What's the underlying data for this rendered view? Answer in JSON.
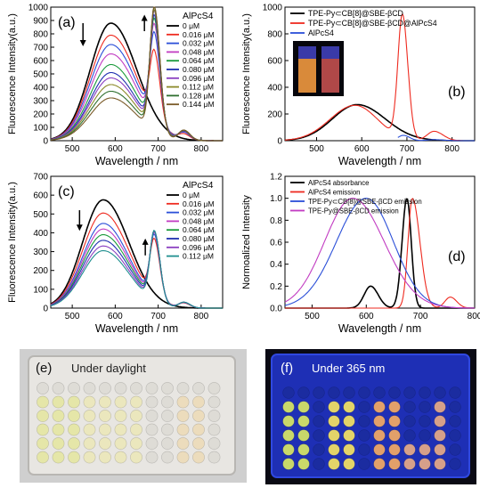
{
  "colors": {
    "black": "#000000",
    "red": "#ee2a1f",
    "blue": "#2b4fd8",
    "magenta": "#c23cc2",
    "green": "#1a9a3a",
    "dark_blue": "#1f2fb0",
    "purple": "#8a3fc0",
    "olive": "#8c8a2a",
    "dark_green": "#2f6f2f",
    "brown": "#7a5a28",
    "teal": "#1f8f8f"
  },
  "photos": {
    "e": {
      "panel_label": "(e)",
      "caption": "Under daylight",
      "icon": "well-plate-daylight-photo"
    },
    "f": {
      "panel_label": "(f)",
      "caption": "Under 365 nm",
      "icon": "well-plate-uv-photo"
    }
  },
  "chart_data": [
    {
      "panel": "(a)",
      "type": "line",
      "xlabel": "Wavelength / nm",
      "ylabel": "Fluorescence Intensity(a.u.)",
      "xlim": [
        450,
        850
      ],
      "ylim": [
        0,
        1000
      ],
      "xticks": [
        500,
        600,
        700,
        800
      ],
      "yticks": [
        0,
        100,
        200,
        300,
        400,
        500,
        600,
        700,
        800,
        900,
        1000
      ],
      "legend_title": "AlPcS4",
      "legend_position": "top-right",
      "arrows": [
        "down-at-main-peak",
        "up-at-secondary-peak"
      ],
      "series": [
        {
          "name": "0 μM",
          "color": "black",
          "peak_main": 880,
          "peak_second": 0
        },
        {
          "name": "0.016 μM",
          "color": "red",
          "peak_main": 790,
          "peak_second": 490
        },
        {
          "name": "0.032 μM",
          "color": "blue",
          "peak_main": 720,
          "peak_second": 640
        },
        {
          "name": "0.048 μM",
          "color": "magenta",
          "peak_main": 650,
          "peak_second": 720
        },
        {
          "name": "0.064 μM",
          "color": "green",
          "peak_main": 570,
          "peak_second": 780
        },
        {
          "name": "0.080 μM",
          "color": "dark_blue",
          "peak_main": 510,
          "peak_second": 820
        },
        {
          "name": "0.096 μM",
          "color": "purple",
          "peak_main": 470,
          "peak_second": 860
        },
        {
          "name": "0.112 μM",
          "color": "olive",
          "peak_main": 420,
          "peak_second": 880
        },
        {
          "name": "0.128 μM",
          "color": "dark_green",
          "peak_main": 370,
          "peak_second": 910
        },
        {
          "name": "0.144 μM",
          "color": "brown",
          "peak_main": 320,
          "peak_second": 930
        }
      ]
    },
    {
      "panel": "(b)",
      "type": "line",
      "xlabel": "Wavelength / nm",
      "ylabel": "Fluorescence Intensity(a.u.)",
      "xlim": [
        430,
        850
      ],
      "ylim": [
        0,
        1000
      ],
      "xticks": [
        500,
        600,
        700,
        800
      ],
      "yticks": [
        0,
        200,
        400,
        600,
        800,
        1000
      ],
      "legend_position": "top",
      "inset": "cuvettes-photo",
      "series": [
        {
          "name": "TPE-Py⊂CB[8]@SBE-βCD",
          "color": "black",
          "peak_main": 270,
          "peak_second": 0
        },
        {
          "name": "TPE-Py⊂CB[8]@SBE-βCD@AlPcS4",
          "color": "red",
          "peak_main": 265,
          "peak_second": 920
        },
        {
          "name": "AlPcS4",
          "color": "blue",
          "peak_main": 0,
          "peak_second": 40
        }
      ]
    },
    {
      "panel": "(c)",
      "type": "line",
      "xlabel": "Wavelength / nm",
      "ylabel": "Fluorescence Intensity(a.u.)",
      "xlim": [
        450,
        850
      ],
      "ylim": [
        0,
        700
      ],
      "xticks": [
        500,
        600,
        700,
        800
      ],
      "yticks": [
        0,
        100,
        200,
        300,
        400,
        500,
        600,
        700
      ],
      "legend_title": "AlPcS4",
      "legend_position": "top-right",
      "arrows": [
        "down-at-main-peak",
        "up-at-secondary-peak"
      ],
      "series": [
        {
          "name": "0 μM",
          "color": "black",
          "peak_main": 575,
          "peak_second": 0
        },
        {
          "name": "0.016 μM",
          "color": "red",
          "peak_main": 505,
          "peak_second": 300
        },
        {
          "name": "0.032 μM",
          "color": "blue",
          "peak_main": 450,
          "peak_second": 330
        },
        {
          "name": "0.048 μM",
          "color": "magenta",
          "peak_main": 420,
          "peak_second": 345
        },
        {
          "name": "0.064 μM",
          "color": "green",
          "peak_main": 390,
          "peak_second": 355
        },
        {
          "name": "0.080 μM",
          "color": "dark_blue",
          "peak_main": 360,
          "peak_second": 360
        },
        {
          "name": "0.096 μM",
          "color": "purple",
          "peak_main": 330,
          "peak_second": 365
        },
        {
          "name": "0.112 μM",
          "color": "teal",
          "peak_main": 305,
          "peak_second": 370
        }
      ]
    },
    {
      "panel": "(d)",
      "type": "line",
      "xlabel": "Wavelength / nm",
      "ylabel": "Normoalized Intensity",
      "xlim": [
        450,
        800
      ],
      "ylim": [
        0,
        1.2
      ],
      "xticks": [
        500,
        600,
        700,
        800
      ],
      "yticks": [
        0.0,
        0.2,
        0.4,
        0.6,
        0.8,
        1.0,
        1.2
      ],
      "legend_position": "top-left",
      "series": [
        {
          "name": "AlPcS4 absorbance",
          "color": "black",
          "peak_x": 675,
          "peak_y": 1.0
        },
        {
          "name": "AlPcS4 emission",
          "color": "red",
          "peak_x": 685,
          "peak_y": 1.0
        },
        {
          "name": "TPE-Py⊂CB[8]@SBE-βCD emission",
          "color": "blue",
          "peak_x": 600,
          "peak_y": 1.0
        },
        {
          "name": "TPE-Py@SBE-βCD emission",
          "color": "magenta",
          "peak_x": 575,
          "peak_y": 1.0
        }
      ]
    }
  ]
}
